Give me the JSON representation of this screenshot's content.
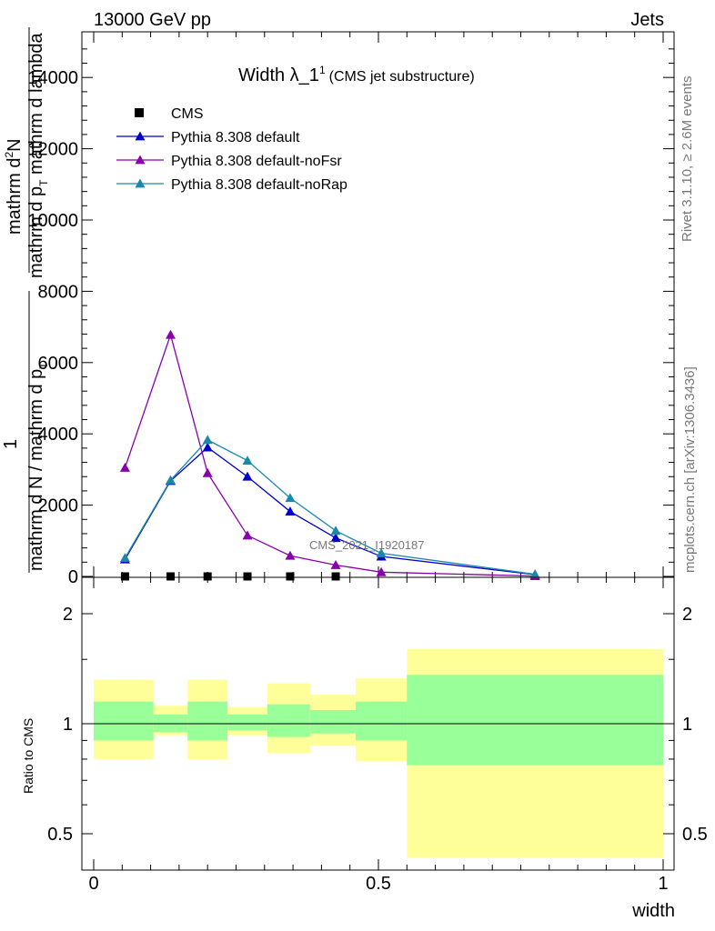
{
  "header": {
    "left": "13000 GeV pp",
    "right": "Jets"
  },
  "side_labels": {
    "rivet": "Rivet 3.1.10, ≥ 2.6M events",
    "mcplots": "mcplots.cern.ch [arXiv:1306.3436]"
  },
  "watermark": "CMS_2021_I1920187",
  "colors": {
    "cms": "#000000",
    "default": "#0000cc",
    "noFsr": "#8800aa",
    "noRap": "#1a88aa",
    "band_inner": "#99ff99",
    "band_outer": "#ffff99"
  },
  "chart_data": [
    {
      "type": "line",
      "title_main": "Width λ_1",
      "title_sup": "1",
      "title_sub": "(CMS jet substructure)",
      "xlabel": "",
      "ylabel_top_num": "mathrm d",
      "ylabel_top_sup": "2",
      "ylabel_top_N": "N",
      "ylabel_top_den": "mathrm d p",
      "ylabel_top_den_sub": "T",
      "ylabel_top_den2": " mathrm d lambda",
      "ylabel_one": "1",
      "ylabel_bottom": "mathrm d N / mathrm d p",
      "ylabel_bottom_sub": "T",
      "ylim": [
        0,
        15000
      ],
      "xlim": [
        0,
        1
      ],
      "yticks": [
        0,
        2000,
        4000,
        6000,
        8000,
        10000,
        12000,
        14000
      ],
      "ytick_labels": [
        "0",
        "2000",
        "4000",
        "6000",
        "8000",
        "10000",
        "12000",
        "14000"
      ],
      "legend_position": "top-left",
      "series": [
        {
          "name": "CMS",
          "kind": "data",
          "x": [
            0.055,
            0.135,
            0.2,
            0.27,
            0.345,
            0.425
          ],
          "y": [
            0,
            0,
            0,
            0,
            0,
            0
          ]
        },
        {
          "name": "Pythia 8.308 default",
          "kind": "mc",
          "x": [
            0.055,
            0.135,
            0.2,
            0.27,
            0.345,
            0.425,
            0.505,
            0.775
          ],
          "y": [
            480,
            2680,
            3620,
            2800,
            1820,
            1080,
            560,
            50
          ]
        },
        {
          "name": "Pythia 8.308 default-noFsr",
          "kind": "mc",
          "x": [
            0.055,
            0.135,
            0.2,
            0.27,
            0.345,
            0.425,
            0.505,
            0.775
          ],
          "y": [
            3050,
            6780,
            2900,
            1150,
            580,
            320,
            120,
            10
          ]
        },
        {
          "name": "Pythia 8.308 default-noRap",
          "kind": "mc",
          "x": [
            0.055,
            0.135,
            0.2,
            0.27,
            0.345,
            0.425,
            0.505,
            0.775
          ],
          "y": [
            520,
            2700,
            3830,
            3250,
            2200,
            1280,
            650,
            60
          ]
        }
      ]
    },
    {
      "type": "area",
      "ylabel": "Ratio to CMS",
      "xlabel": "width",
      "xlim": [
        0,
        1
      ],
      "ylim": [
        0.4,
        2.3
      ],
      "yticks": [
        0.5,
        1,
        2
      ],
      "ytick_labels": [
        "0.5",
        "1",
        "2"
      ],
      "xticks": [
        0,
        0.5,
        1
      ],
      "xtick_labels": [
        "0",
        "0.5",
        "1"
      ],
      "bins": [
        {
          "x0": 0.0,
          "x1": 0.105,
          "in_lo": 0.9,
          "in_hi": 1.15,
          "out_lo": 0.8,
          "out_hi": 1.32
        },
        {
          "x0": 0.105,
          "x1": 0.165,
          "in_lo": 0.95,
          "in_hi": 1.06,
          "out_lo": 0.93,
          "out_hi": 1.12
        },
        {
          "x0": 0.165,
          "x1": 0.235,
          "in_lo": 0.9,
          "in_hi": 1.15,
          "out_lo": 0.8,
          "out_hi": 1.32
        },
        {
          "x0": 0.235,
          "x1": 0.305,
          "in_lo": 0.96,
          "in_hi": 1.06,
          "out_lo": 0.93,
          "out_hi": 1.11
        },
        {
          "x0": 0.305,
          "x1": 0.38,
          "in_lo": 0.92,
          "in_hi": 1.13,
          "out_lo": 0.83,
          "out_hi": 1.29
        },
        {
          "x0": 0.38,
          "x1": 0.46,
          "in_lo": 0.94,
          "in_hi": 1.09,
          "out_lo": 0.87,
          "out_hi": 1.2
        },
        {
          "x0": 0.46,
          "x1": 0.55,
          "in_lo": 0.9,
          "in_hi": 1.15,
          "out_lo": 0.79,
          "out_hi": 1.33
        },
        {
          "x0": 0.55,
          "x1": 1.0,
          "in_lo": 0.77,
          "in_hi": 1.36,
          "out_lo": 0.43,
          "out_hi": 1.6
        }
      ]
    }
  ]
}
